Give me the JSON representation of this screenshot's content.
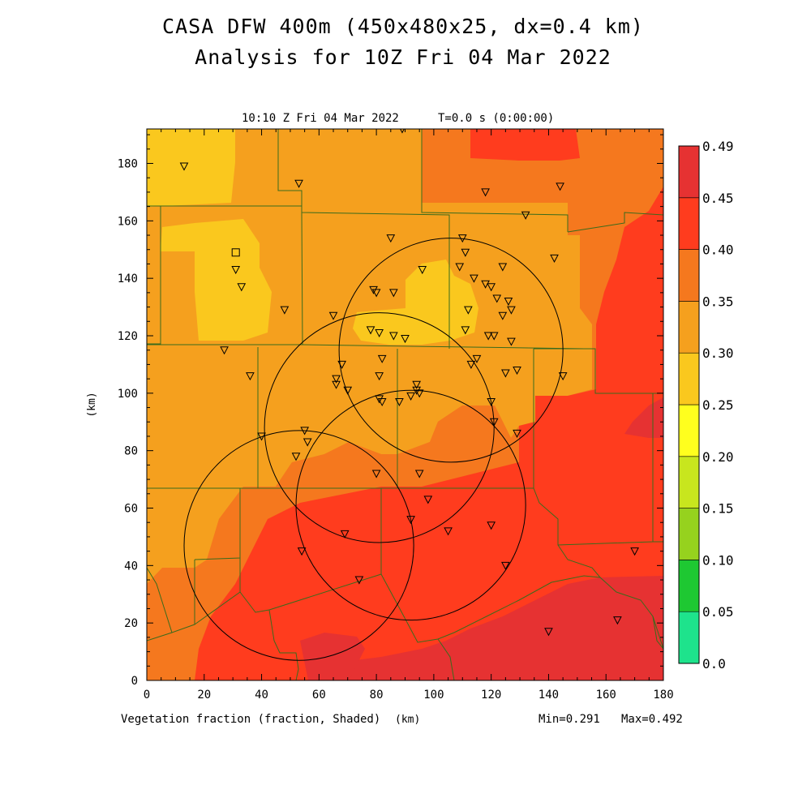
{
  "title": {
    "line1": "CASA DFW 400m (450x480x25, dx=0.4 km)",
    "line2": "Analysis for 10Z Fri 04 Mar 2022"
  },
  "plot": {
    "time_label": "10:10 Z Fri 04 Mar 2022",
    "t_label": "T=0.0 s (0:00:00)",
    "field_label": "Vegetation fraction (fraction, Shaded)",
    "x_unit": "(km)",
    "y_unit": "(km)",
    "min_label": "Min=0.291",
    "max_label": "Max=0.492"
  },
  "axes": {
    "x_ticks": [
      "0",
      "20",
      "40",
      "60",
      "80",
      "100",
      "120",
      "140",
      "160",
      "180"
    ],
    "y_ticks": [
      "0",
      "20",
      "40",
      "60",
      "80",
      "100",
      "120",
      "140",
      "160",
      "180"
    ],
    "xlim": [
      0,
      180
    ],
    "ylim": [
      0,
      192
    ]
  },
  "colorbar": {
    "labels": [
      "0.0",
      "0.05",
      "0.10",
      "0.15",
      "0.20",
      "0.25",
      "0.30",
      "0.35",
      "0.40",
      "0.45",
      "0.49"
    ],
    "colors": [
      "#1ee38c",
      "#1ec832",
      "#96d21e",
      "#c8e61e",
      "#ffff1e",
      "#fac81e",
      "#f5a01e",
      "#f5781e",
      "#ff3c1e",
      "#e63232"
    ]
  },
  "shading_colors": {
    "c025": "#fac81e",
    "c030": "#f5a01e",
    "c035": "#f5781e",
    "c040": "#ff3c1e",
    "c045": "#e63232"
  },
  "radar_rings_km": [
    {
      "cx": 106,
      "cy": 115,
      "r": 39
    },
    {
      "cx": 81,
      "cy": 88,
      "r": 40
    },
    {
      "cx": 92,
      "cy": 61,
      "r": 40
    },
    {
      "cx": 53,
      "cy": 47,
      "r": 40
    }
  ],
  "station_square_km": [
    31,
    149
  ],
  "stations_km": [
    [
      13,
      179
    ],
    [
      53,
      173
    ],
    [
      89,
      192
    ],
    [
      118,
      170
    ],
    [
      144,
      172
    ],
    [
      132,
      162
    ],
    [
      85,
      154
    ],
    [
      142,
      147
    ],
    [
      31,
      143
    ],
    [
      33,
      137
    ],
    [
      48,
      129
    ],
    [
      65,
      127
    ],
    [
      110,
      154
    ],
    [
      111,
      149
    ],
    [
      109,
      144
    ],
    [
      96,
      143
    ],
    [
      124,
      144
    ],
    [
      114,
      140
    ],
    [
      118,
      138
    ],
    [
      120,
      137
    ],
    [
      122,
      133
    ],
    [
      126,
      132
    ],
    [
      127,
      129
    ],
    [
      112,
      129
    ],
    [
      124,
      127
    ],
    [
      111,
      122
    ],
    [
      78,
      122
    ],
    [
      81,
      121
    ],
    [
      86,
      120
    ],
    [
      90,
      119
    ],
    [
      119,
      120
    ],
    [
      121,
      120
    ],
    [
      127,
      118
    ],
    [
      79,
      136
    ],
    [
      80,
      135
    ],
    [
      86,
      135
    ],
    [
      27,
      115
    ],
    [
      68,
      110
    ],
    [
      82,
      112
    ],
    [
      115,
      112
    ],
    [
      113,
      110
    ],
    [
      129,
      108
    ],
    [
      125,
      107
    ],
    [
      145,
      106
    ],
    [
      36,
      106
    ],
    [
      66,
      105
    ],
    [
      81,
      106
    ],
    [
      66,
      103
    ],
    [
      70,
      101
    ],
    [
      94,
      103
    ],
    [
      94,
      101
    ],
    [
      95,
      100
    ],
    [
      92,
      99
    ],
    [
      81,
      98
    ],
    [
      82,
      97
    ],
    [
      88,
      97
    ],
    [
      120,
      97
    ],
    [
      121,
      90
    ],
    [
      129,
      86
    ],
    [
      55,
      87
    ],
    [
      56,
      83
    ],
    [
      40,
      85
    ],
    [
      52,
      78
    ],
    [
      80,
      72
    ],
    [
      95,
      72
    ],
    [
      98,
      63
    ],
    [
      92,
      56
    ],
    [
      69,
      51
    ],
    [
      105,
      52
    ],
    [
      120,
      54
    ],
    [
      54,
      45
    ],
    [
      125,
      40
    ],
    [
      74,
      35
    ],
    [
      170,
      45
    ],
    [
      140,
      17
    ],
    [
      164,
      21
    ]
  ]
}
